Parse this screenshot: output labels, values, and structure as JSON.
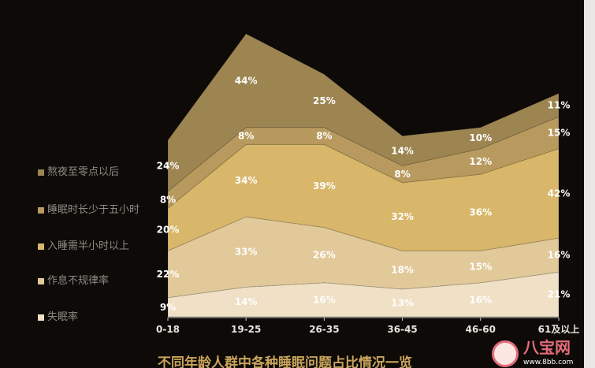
{
  "chart_data": {
    "type": "area",
    "stacked": true,
    "title": "不同年龄人群中各种睡眠问题占比情况一览",
    "categories": [
      "0-18",
      "19-25",
      "26-35",
      "36-45",
      "46-60",
      "61及以上"
    ],
    "series": [
      {
        "name": "失眠率",
        "values": [
          9,
          14,
          16,
          13,
          16,
          21
        ],
        "color": "#efe0c6"
      },
      {
        "name": "作息不规律率",
        "values": [
          22,
          33,
          26,
          18,
          15,
          16
        ],
        "color": "#e2c99a"
      },
      {
        "name": "入睡需半小时以上",
        "values": [
          20,
          34,
          39,
          32,
          36,
          42
        ],
        "color": "#d8b76a"
      },
      {
        "name": "睡眠时长少于五小时",
        "values": [
          8,
          8,
          8,
          8,
          12,
          15
        ],
        "color": "#b89a5e"
      },
      {
        "name": "熬夜至零点以后",
        "values": [
          24,
          44,
          25,
          14,
          10,
          11
        ],
        "color": "#9d8552"
      }
    ],
    "value_suffix": "%",
    "legend_position": "left",
    "grid": false,
    "background": "#0d0a08"
  },
  "watermark": {
    "text": "八宝网",
    "url": "www.8bb.com"
  }
}
